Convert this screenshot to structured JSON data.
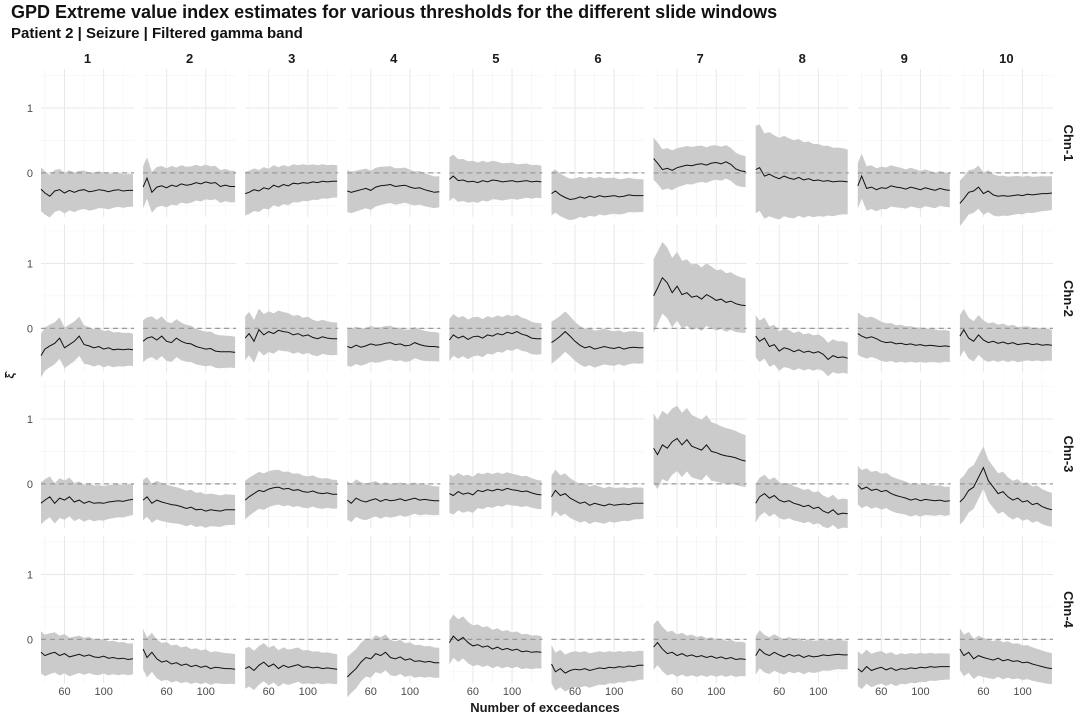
{
  "chart_data": {
    "type": "area",
    "title": "GPD Extreme value index estimates for various thresholds for the different slide windows",
    "subtitle": "Patient 2 | Seizure | Filtered gamma band",
    "xlabel": "Number of exceedances",
    "ylabel": "ξ̂",
    "xlim": [
      36,
      131
    ],
    "ylim": [
      -0.68,
      1.6
    ],
    "x_ticks": [
      60,
      100
    ],
    "y_ticks": [
      0,
      1
    ],
    "reference_line": {
      "y": 0,
      "style": "dashed"
    },
    "grid": true,
    "windows": [
      "1",
      "2",
      "3",
      "4",
      "5",
      "6",
      "7",
      "8",
      "9",
      "10"
    ],
    "channels": [
      "Chn-1",
      "Chn-2",
      "Chn-3",
      "Chn-4"
    ],
    "x": [
      36,
      40,
      45,
      50,
      55,
      60,
      65,
      70,
      75,
      80,
      85,
      90,
      95,
      100,
      105,
      110,
      115,
      120,
      125,
      130
    ],
    "estimates": {
      "Chn-1": [
        [
          -0.25,
          -0.31,
          -0.36,
          -0.28,
          -0.26,
          -0.31,
          -0.27,
          -0.3,
          -0.27,
          -0.26,
          -0.29,
          -0.28,
          -0.26,
          -0.27,
          -0.29,
          -0.27,
          -0.26,
          -0.28,
          -0.27,
          -0.27
        ],
        [
          -0.22,
          -0.08,
          -0.3,
          -0.22,
          -0.2,
          -0.23,
          -0.19,
          -0.21,
          -0.17,
          -0.19,
          -0.18,
          -0.15,
          -0.17,
          -0.14,
          -0.16,
          -0.15,
          -0.21,
          -0.19,
          -0.21,
          -0.21
        ],
        [
          -0.32,
          -0.3,
          -0.26,
          -0.28,
          -0.23,
          -0.25,
          -0.19,
          -0.22,
          -0.18,
          -0.2,
          -0.16,
          -0.17,
          -0.15,
          -0.16,
          -0.14,
          -0.15,
          -0.13,
          -0.14,
          -0.13,
          -0.13
        ],
        [
          -0.28,
          -0.3,
          -0.28,
          -0.26,
          -0.24,
          -0.27,
          -0.22,
          -0.2,
          -0.19,
          -0.18,
          -0.21,
          -0.2,
          -0.19,
          -0.22,
          -0.24,
          -0.23,
          -0.26,
          -0.28,
          -0.3,
          -0.29
        ],
        [
          -0.1,
          -0.05,
          -0.12,
          -0.11,
          -0.14,
          -0.13,
          -0.15,
          -0.12,
          -0.14,
          -0.11,
          -0.12,
          -0.14,
          -0.13,
          -0.12,
          -0.14,
          -0.13,
          -0.12,
          -0.14,
          -0.13,
          -0.14
        ],
        [
          -0.32,
          -0.28,
          -0.34,
          -0.38,
          -0.41,
          -0.4,
          -0.37,
          -0.39,
          -0.36,
          -0.38,
          -0.35,
          -0.37,
          -0.36,
          -0.35,
          -0.37,
          -0.36,
          -0.34,
          -0.35,
          -0.35,
          -0.35
        ],
        [
          0.22,
          0.15,
          0.05,
          0.07,
          0.04,
          0.08,
          0.1,
          0.12,
          0.11,
          0.13,
          0.14,
          0.12,
          0.15,
          0.16,
          0.14,
          0.17,
          0.13,
          0.06,
          0.03,
          0.02
        ],
        [
          0.05,
          0.08,
          -0.05,
          -0.02,
          -0.06,
          -0.09,
          -0.05,
          -0.08,
          -0.1,
          -0.07,
          -0.11,
          -0.09,
          -0.12,
          -0.11,
          -0.13,
          -0.12,
          -0.14,
          -0.13,
          -0.13,
          -0.14
        ],
        [
          -0.2,
          -0.05,
          -0.24,
          -0.22,
          -0.26,
          -0.23,
          -0.24,
          -0.2,
          -0.22,
          -0.23,
          -0.25,
          -0.22,
          -0.24,
          -0.26,
          -0.23,
          -0.25,
          -0.27,
          -0.24,
          -0.26,
          -0.27
        ],
        [
          -0.47,
          -0.4,
          -0.3,
          -0.28,
          -0.22,
          -0.32,
          -0.28,
          -0.34,
          -0.36,
          -0.35,
          -0.36,
          -0.35,
          -0.34,
          -0.35,
          -0.33,
          -0.34,
          -0.33,
          -0.32,
          -0.32,
          -0.31
        ]
      ],
      "Chn-2": [
        [
          -0.42,
          -0.32,
          -0.27,
          -0.23,
          -0.15,
          -0.3,
          -0.25,
          -0.2,
          -0.12,
          -0.25,
          -0.27,
          -0.3,
          -0.28,
          -0.32,
          -0.3,
          -0.33,
          -0.32,
          -0.33,
          -0.32,
          -0.33
        ],
        [
          -0.2,
          -0.15,
          -0.13,
          -0.18,
          -0.12,
          -0.2,
          -0.22,
          -0.15,
          -0.2,
          -0.23,
          -0.24,
          -0.28,
          -0.3,
          -0.32,
          -0.31,
          -0.35,
          -0.36,
          -0.36,
          -0.36,
          -0.37
        ],
        [
          -0.15,
          -0.08,
          -0.2,
          -0.02,
          -0.1,
          -0.05,
          -0.08,
          -0.03,
          -0.05,
          -0.06,
          -0.1,
          -0.08,
          -0.12,
          -0.1,
          -0.14,
          -0.16,
          -0.13,
          -0.15,
          -0.16,
          -0.16
        ],
        [
          -0.28,
          -0.3,
          -0.26,
          -0.29,
          -0.27,
          -0.24,
          -0.26,
          -0.25,
          -0.23,
          -0.22,
          -0.25,
          -0.24,
          -0.27,
          -0.26,
          -0.22,
          -0.25,
          -0.27,
          -0.28,
          -0.28,
          -0.29
        ],
        [
          -0.18,
          -0.1,
          -0.15,
          -0.12,
          -0.17,
          -0.13,
          -0.12,
          -0.15,
          -0.1,
          -0.12,
          -0.08,
          -0.1,
          -0.06,
          -0.08,
          -0.05,
          -0.09,
          -0.11,
          -0.15,
          -0.16,
          -0.16
        ],
        [
          -0.22,
          -0.18,
          -0.12,
          -0.05,
          -0.12,
          -0.2,
          -0.26,
          -0.3,
          -0.28,
          -0.32,
          -0.3,
          -0.28,
          -0.3,
          -0.31,
          -0.29,
          -0.32,
          -0.3,
          -0.29,
          -0.3,
          -0.3
        ],
        [
          0.5,
          0.62,
          0.78,
          0.7,
          0.55,
          0.65,
          0.52,
          0.55,
          0.48,
          0.5,
          0.45,
          0.52,
          0.48,
          0.43,
          0.45,
          0.4,
          0.42,
          0.38,
          0.36,
          0.35
        ],
        [
          -0.12,
          -0.2,
          -0.15,
          -0.28,
          -0.25,
          -0.35,
          -0.3,
          -0.32,
          -0.36,
          -0.33,
          -0.37,
          -0.35,
          -0.38,
          -0.36,
          -0.4,
          -0.48,
          -0.42,
          -0.45,
          -0.44,
          -0.46
        ],
        [
          -0.08,
          -0.12,
          -0.15,
          -0.13,
          -0.16,
          -0.2,
          -0.22,
          -0.21,
          -0.24,
          -0.23,
          -0.25,
          -0.24,
          -0.26,
          -0.25,
          -0.27,
          -0.26,
          -0.27,
          -0.28,
          -0.27,
          -0.28
        ],
        [
          -0.12,
          -0.02,
          -0.15,
          -0.2,
          -0.1,
          -0.18,
          -0.22,
          -0.2,
          -0.23,
          -0.21,
          -0.24,
          -0.22,
          -0.25,
          -0.24,
          -0.23,
          -0.25,
          -0.24,
          -0.26,
          -0.25,
          -0.26
        ]
      ],
      "Chn-3": [
        [
          -0.3,
          -0.25,
          -0.2,
          -0.3,
          -0.22,
          -0.25,
          -0.2,
          -0.28,
          -0.25,
          -0.3,
          -0.27,
          -0.3,
          -0.29,
          -0.3,
          -0.28,
          -0.27,
          -0.26,
          -0.27,
          -0.25,
          -0.24
        ],
        [
          -0.25,
          -0.2,
          -0.3,
          -0.25,
          -0.28,
          -0.3,
          -0.32,
          -0.33,
          -0.35,
          -0.38,
          -0.36,
          -0.4,
          -0.39,
          -0.42,
          -0.4,
          -0.41,
          -0.42,
          -0.4,
          -0.4,
          -0.4
        ],
        [
          -0.25,
          -0.2,
          -0.15,
          -0.1,
          -0.12,
          -0.08,
          -0.06,
          -0.05,
          -0.08,
          -0.07,
          -0.1,
          -0.09,
          -0.12,
          -0.13,
          -0.11,
          -0.14,
          -0.15,
          -0.14,
          -0.16,
          -0.16
        ],
        [
          -0.25,
          -0.3,
          -0.22,
          -0.26,
          -0.28,
          -0.25,
          -0.23,
          -0.27,
          -0.24,
          -0.26,
          -0.25,
          -0.23,
          -0.26,
          -0.24,
          -0.22,
          -0.25,
          -0.24,
          -0.25,
          -0.26,
          -0.26
        ],
        [
          -0.15,
          -0.18,
          -0.12,
          -0.16,
          -0.14,
          -0.17,
          -0.1,
          -0.12,
          -0.09,
          -0.11,
          -0.08,
          -0.1,
          -0.07,
          -0.09,
          -0.1,
          -0.12,
          -0.11,
          -0.14,
          -0.16,
          -0.17
        ],
        [
          -0.2,
          -0.1,
          -0.18,
          -0.15,
          -0.22,
          -0.26,
          -0.3,
          -0.28,
          -0.33,
          -0.3,
          -0.32,
          -0.34,
          -0.31,
          -0.33,
          -0.32,
          -0.31,
          -0.32,
          -0.3,
          -0.3,
          -0.3
        ],
        [
          0.55,
          0.45,
          0.6,
          0.55,
          0.65,
          0.7,
          0.6,
          0.68,
          0.58,
          0.55,
          0.52,
          0.6,
          0.5,
          0.48,
          0.45,
          0.43,
          0.42,
          0.4,
          0.37,
          0.35
        ],
        [
          -0.3,
          -0.2,
          -0.15,
          -0.22,
          -0.18,
          -0.25,
          -0.28,
          -0.26,
          -0.3,
          -0.32,
          -0.35,
          -0.33,
          -0.38,
          -0.36,
          -0.42,
          -0.45,
          -0.4,
          -0.47,
          -0.45,
          -0.46
        ],
        [
          -0.02,
          -0.08,
          -0.05,
          -0.1,
          -0.08,
          -0.12,
          -0.1,
          -0.15,
          -0.18,
          -0.2,
          -0.22,
          -0.25,
          -0.23,
          -0.26,
          -0.24,
          -0.25,
          -0.26,
          -0.25,
          -0.27,
          -0.26
        ],
        [
          -0.28,
          -0.22,
          -0.1,
          -0.05,
          0.1,
          0.25,
          0.05,
          -0.05,
          -0.15,
          -0.12,
          -0.2,
          -0.25,
          -0.22,
          -0.28,
          -0.26,
          -0.32,
          -0.3,
          -0.35,
          -0.38,
          -0.4
        ]
      ],
      "Chn-4": [
        [
          -0.2,
          -0.25,
          -0.22,
          -0.2,
          -0.25,
          -0.22,
          -0.27,
          -0.25,
          -0.23,
          -0.26,
          -0.24,
          -0.27,
          -0.28,
          -0.26,
          -0.29,
          -0.28,
          -0.3,
          -0.29,
          -0.31,
          -0.3
        ],
        [
          -0.15,
          -0.28,
          -0.2,
          -0.3,
          -0.35,
          -0.33,
          -0.38,
          -0.36,
          -0.4,
          -0.38,
          -0.42,
          -0.4,
          -0.43,
          -0.41,
          -0.45,
          -0.43,
          -0.44,
          -0.45,
          -0.45,
          -0.46
        ],
        [
          -0.45,
          -0.42,
          -0.48,
          -0.4,
          -0.35,
          -0.42,
          -0.38,
          -0.45,
          -0.4,
          -0.43,
          -0.41,
          -0.39,
          -0.43,
          -0.42,
          -0.44,
          -0.43,
          -0.45,
          -0.44,
          -0.45,
          -0.46
        ],
        [
          -0.58,
          -0.52,
          -0.45,
          -0.35,
          -0.28,
          -0.3,
          -0.22,
          -0.25,
          -0.2,
          -0.28,
          -0.3,
          -0.27,
          -0.32,
          -0.3,
          -0.34,
          -0.33,
          -0.35,
          -0.34,
          -0.36,
          -0.36
        ],
        [
          -0.05,
          0.05,
          -0.02,
          0.03,
          -0.05,
          -0.1,
          -0.08,
          -0.12,
          -0.1,
          -0.15,
          -0.12,
          -0.16,
          -0.14,
          -0.17,
          -0.15,
          -0.19,
          -0.18,
          -0.2,
          -0.19,
          -0.2
        ],
        [
          -0.38,
          -0.5,
          -0.45,
          -0.52,
          -0.48,
          -0.46,
          -0.47,
          -0.45,
          -0.48,
          -0.46,
          -0.44,
          -0.45,
          -0.43,
          -0.44,
          -0.42,
          -0.43,
          -0.41,
          -0.42,
          -0.4,
          -0.4
        ],
        [
          -0.12,
          -0.05,
          -0.15,
          -0.22,
          -0.2,
          -0.25,
          -0.22,
          -0.26,
          -0.24,
          -0.27,
          -0.25,
          -0.28,
          -0.26,
          -0.29,
          -0.27,
          -0.3,
          -0.28,
          -0.31,
          -0.3,
          -0.31
        ],
        [
          -0.25,
          -0.15,
          -0.22,
          -0.25,
          -0.2,
          -0.24,
          -0.27,
          -0.23,
          -0.26,
          -0.24,
          -0.28,
          -0.25,
          -0.27,
          -0.26,
          -0.24,
          -0.25,
          -0.24,
          -0.23,
          -0.24,
          -0.24
        ],
        [
          -0.45,
          -0.5,
          -0.42,
          -0.48,
          -0.45,
          -0.43,
          -0.47,
          -0.44,
          -0.48,
          -0.45,
          -0.46,
          -0.44,
          -0.45,
          -0.43,
          -0.44,
          -0.42,
          -0.43,
          -0.42,
          -0.42,
          -0.42
        ],
        [
          -0.15,
          -0.25,
          -0.2,
          -0.3,
          -0.25,
          -0.28,
          -0.3,
          -0.32,
          -0.29,
          -0.33,
          -0.31,
          -0.34,
          -0.33,
          -0.36,
          -0.35,
          -0.38,
          -0.4,
          -0.42,
          -0.44,
          -0.45
        ]
      ]
    },
    "ci_halfwidth": {
      "Chn-1": [
        0.25,
        0.24,
        0.25,
        0.24,
        0.25,
        0.25,
        0.24,
        0.5,
        0.26,
        0.26
      ],
      "Chn-2": [
        0.25,
        0.24,
        0.25,
        0.22,
        0.24,
        0.24,
        0.42,
        0.24,
        0.24,
        0.24
      ],
      "Chn-3": [
        0.24,
        0.23,
        0.22,
        0.22,
        0.22,
        0.24,
        0.4,
        0.22,
        0.22,
        0.26
      ],
      "Chn-4": [
        0.24,
        0.23,
        0.23,
        0.23,
        0.25,
        0.22,
        0.26,
        0.22,
        0.2,
        0.24
      ]
    }
  }
}
